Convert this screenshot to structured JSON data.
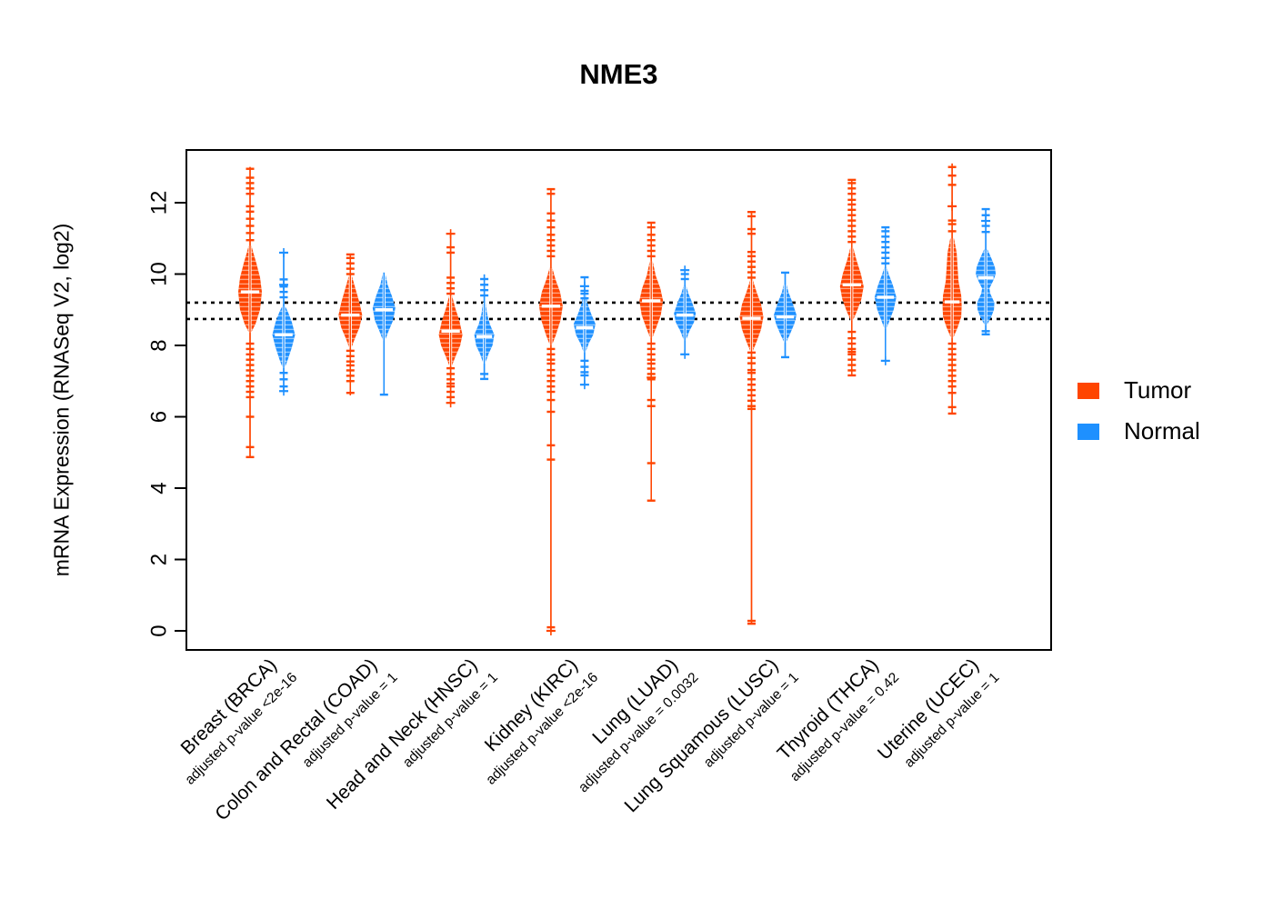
{
  "title": "NME3",
  "legend": {
    "tumor_label": "Tumor",
    "normal_label": "Normal",
    "tumor_color": "#FF4500",
    "normal_color": "#1E90FF"
  },
  "y_axis": {
    "label": "mRNA Expression (RNASeq V2, log2)",
    "ticks": [
      0,
      2,
      4,
      6,
      8,
      10,
      12
    ],
    "range": [
      -0.5,
      13.5
    ]
  },
  "reference_lines": [
    9.2,
    8.74
  ],
  "chart_data": {
    "type": "violin",
    "ylabel": "mRNA Expression (RNASeq V2, log2)",
    "series_names": [
      "Tumor",
      "Normal"
    ],
    "groups": [
      {
        "label": "Breast (BRCA)",
        "sublabel": "adjusted p-value <2e-16",
        "tumor": {
          "median": 9.5,
          "profile": [
            [
              8.35,
              1
            ],
            [
              8.6,
              6
            ],
            [
              9.0,
              11
            ],
            [
              9.5,
              13
            ],
            [
              9.9,
              11
            ],
            [
              10.3,
              7
            ],
            [
              10.6,
              3.5
            ],
            [
              10.8,
              1.5
            ]
          ],
          "stem": [
            4.87,
            13.0
          ],
          "dashes": [
            10.95,
            11.15,
            11.35,
            11.55,
            11.75,
            11.9,
            12.25,
            12.4,
            12.55,
            12.7,
            12.95,
            8.05,
            7.9,
            7.75,
            7.6,
            7.45,
            7.3,
            7.15,
            7.0,
            6.85,
            6.7,
            6.55,
            6.0,
            5.15,
            4.87
          ],
          "plus": []
        },
        "normal": {
          "median": 8.3,
          "profile": [
            [
              7.36,
              1
            ],
            [
              7.6,
              4.5
            ],
            [
              7.95,
              9
            ],
            [
              8.3,
              12.5
            ],
            [
              8.65,
              9
            ],
            [
              8.95,
              4.5
            ],
            [
              9.1,
              1.5
            ]
          ],
          "stem": [
            6.72,
            10.6
          ],
          "dashes": [
            9.35,
            9.5,
            9.65,
            9.85,
            7.23,
            7.05,
            6.85
          ],
          "plus": [
            10.6,
            9.7,
            6.72
          ]
        }
      },
      {
        "label": "Colon and Rectal (COAD)",
        "sublabel": "adjusted p-value = 1",
        "tumor": {
          "median": 8.85,
          "profile": [
            [
              7.92,
              1
            ],
            [
              8.2,
              5
            ],
            [
              8.5,
              10
            ],
            [
              8.85,
              13
            ],
            [
              9.2,
              10
            ],
            [
              9.6,
              5.5
            ],
            [
              9.96,
              1.5
            ]
          ],
          "stem": [
            6.6,
            10.55
          ],
          "dashes": [
            10.0,
            10.15,
            10.3,
            10.45,
            10.55,
            7.85,
            7.7,
            7.55,
            7.44,
            7.3,
            7.15,
            7.0,
            6.67
          ],
          "plus": []
        },
        "normal": {
          "median": 9.0,
          "profile": [
            [
              8.13,
              1
            ],
            [
              8.4,
              5
            ],
            [
              8.7,
              10
            ],
            [
              9.05,
              12.5
            ],
            [
              9.4,
              8.5
            ],
            [
              9.7,
              4
            ],
            [
              10.0,
              1.5
            ]
          ],
          "stem": [
            6.62,
            10.04
          ],
          "dashes": [
            6.62
          ],
          "plus": []
        }
      },
      {
        "label": "Head and Neck (HNSC)",
        "sublabel": "adjusted p-value = 1",
        "tumor": {
          "median": 8.4,
          "profile": [
            [
              7.41,
              1
            ],
            [
              7.7,
              5.5
            ],
            [
              8.0,
              10.5
            ],
            [
              8.3,
              13
            ],
            [
              8.7,
              9.5
            ],
            [
              9.05,
              5
            ],
            [
              9.4,
              1.5
            ]
          ],
          "stem": [
            6.39,
            11.13
          ],
          "dashes": [
            9.45,
            9.6,
            9.75,
            9.9,
            10.6,
            10.75,
            7.36,
            7.2,
            7.05,
            6.93,
            6.85,
            6.7,
            6.55
          ],
          "plus": [
            11.13,
            6.39
          ]
        },
        "normal": {
          "median": 8.25,
          "profile": [
            [
              7.49,
              1
            ],
            [
              7.75,
              4.5
            ],
            [
              8.0,
              9
            ],
            [
              8.3,
              11
            ],
            [
              8.6,
              6
            ],
            [
              8.9,
              3
            ],
            [
              9.2,
              1.5
            ]
          ],
          "stem": [
            7.06,
            9.99
          ],
          "dashes": [
            9.4,
            9.55,
            9.7,
            9.86,
            7.2,
            7.06
          ],
          "plus": []
        }
      },
      {
        "label": "Kidney (KIRC)",
        "sublabel": "adjusted p-value <2e-16",
        "tumor": {
          "median": 9.1,
          "profile": [
            [
              8.0,
              1
            ],
            [
              8.3,
              5.5
            ],
            [
              8.7,
              10.5
            ],
            [
              9.1,
              13
            ],
            [
              9.5,
              10
            ],
            [
              9.85,
              5
            ],
            [
              10.17,
              1.5
            ]
          ],
          "stem": [
            0.0,
            12.38
          ],
          "dashes": [
            10.5,
            10.65,
            10.8,
            10.95,
            11.1,
            11.31,
            11.5,
            11.7,
            12.25,
            12.38,
            7.9,
            7.75,
            7.6,
            7.49,
            7.31,
            7.15,
            7.0,
            6.85,
            6.7,
            6.47,
            6.14,
            5.2,
            4.8,
            0.1
          ],
          "plus": [
            0.0
          ]
        },
        "normal": {
          "median": 8.5,
          "profile": [
            [
              7.8,
              1
            ],
            [
              8.05,
              4.5
            ],
            [
              8.3,
              9.5
            ],
            [
              8.6,
              12
            ],
            [
              8.9,
              7
            ],
            [
              9.2,
              3
            ],
            [
              9.45,
              1.5
            ]
          ],
          "stem": [
            6.9,
            9.91
          ],
          "dashes": [
            9.32,
            9.45,
            9.53,
            9.91,
            7.57,
            7.4,
            7.25,
            7.16
          ],
          "plus": [
            9.66,
            6.9
          ]
        }
      },
      {
        "label": "Lung (LUAD)",
        "sublabel": "adjusted p-value = 0.0032",
        "tumor": {
          "median": 9.25,
          "profile": [
            [
              8.2,
              1
            ],
            [
              8.5,
              5.5
            ],
            [
              8.85,
              10.5
            ],
            [
              9.25,
              13
            ],
            [
              9.6,
              10
            ],
            [
              9.95,
              5
            ],
            [
              10.37,
              1.5
            ]
          ],
          "stem": [
            3.65,
            11.44
          ],
          "dashes": [
            10.5,
            10.65,
            10.8,
            10.95,
            11.1,
            11.31,
            11.44,
            8.05,
            7.9,
            7.75,
            7.6,
            7.49,
            7.35,
            7.2,
            7.05,
            6.47,
            6.3,
            4.7,
            3.65
          ],
          "plus": [
            7.1
          ]
        },
        "normal": {
          "median": 8.85,
          "profile": [
            [
              8.13,
              1
            ],
            [
              8.4,
              5
            ],
            [
              8.65,
              10
            ],
            [
              8.9,
              12
            ],
            [
              9.2,
              8
            ],
            [
              9.45,
              4
            ],
            [
              9.66,
              1.5
            ]
          ],
          "stem": [
            7.75,
            10.11
          ],
          "dashes": [
            9.86,
            10.0
          ],
          "plus": [
            10.11,
            7.75
          ]
        }
      },
      {
        "label": "Lung Squamous (LUSC)",
        "sublabel": "adjusted p-value = 1",
        "tumor": {
          "median": 8.76,
          "profile": [
            [
              7.82,
              1
            ],
            [
              8.1,
              5.5
            ],
            [
              8.45,
              10.5
            ],
            [
              8.8,
              13
            ],
            [
              9.15,
              10.5
            ],
            [
              9.5,
              5.5
            ],
            [
              9.83,
              1.5
            ]
          ],
          "stem": [
            0.2,
            11.74
          ],
          "dashes": [
            9.9,
            10.05,
            10.2,
            10.35,
            10.5,
            10.62,
            11.13,
            11.26,
            11.62,
            11.74,
            7.8,
            7.65,
            7.5,
            7.31,
            7.23,
            7.05,
            6.9,
            6.75,
            6.6,
            6.45,
            6.3,
            6.22,
            0.28,
            0.2
          ],
          "plus": []
        },
        "normal": {
          "median": 8.8,
          "profile": [
            [
              8.08,
              1
            ],
            [
              8.3,
              5
            ],
            [
              8.6,
              10
            ],
            [
              8.85,
              12.5
            ],
            [
              9.2,
              8
            ],
            [
              9.5,
              3.5
            ],
            [
              9.71,
              1.5
            ]
          ],
          "stem": [
            7.67,
            10.04
          ],
          "dashes": [
            10.04,
            7.67
          ],
          "plus": []
        }
      },
      {
        "label": "Thyroid (THCA)",
        "sublabel": "adjusted p-value = 0.42",
        "tumor": {
          "median": 9.7,
          "profile": [
            [
              8.69,
              1
            ],
            [
              8.95,
              5.5
            ],
            [
              9.3,
              10.5
            ],
            [
              9.65,
              13
            ],
            [
              10.0,
              10
            ],
            [
              10.4,
              5
            ],
            [
              10.75,
              1.5
            ]
          ],
          "stem": [
            7.16,
            12.64
          ],
          "dashes": [
            10.9,
            11.05,
            11.2,
            11.35,
            11.5,
            11.65,
            11.8,
            11.95,
            12.08,
            12.25,
            12.4,
            12.55,
            12.64,
            8.38,
            8.2,
            8.05,
            7.9,
            7.82,
            7.75,
            7.6,
            7.45,
            7.3,
            7.16
          ],
          "plus": []
        },
        "normal": {
          "median": 9.35,
          "profile": [
            [
              8.46,
              1
            ],
            [
              8.7,
              4.5
            ],
            [
              9.0,
              9
            ],
            [
              9.35,
              12
            ],
            [
              9.7,
              8
            ],
            [
              10.0,
              3.5
            ],
            [
              10.17,
              1.5
            ]
          ],
          "stem": [
            7.57,
            11.31
          ],
          "dashes": [
            10.3,
            10.45,
            10.6,
            10.75,
            10.9,
            11.05,
            11.2,
            11.31
          ],
          "plus": [
            7.57
          ]
        }
      },
      {
        "label": "Uterine (UCEC)",
        "sublabel": "adjusted p-value = 1",
        "tumor": {
          "median": 9.22,
          "profile": [
            [
              8.2,
              1
            ],
            [
              8.5,
              6
            ],
            [
              8.8,
              10
            ],
            [
              9.1,
              10.5
            ],
            [
              9.4,
              10
            ],
            [
              9.8,
              7
            ],
            [
              10.2,
              6
            ],
            [
              10.6,
              5
            ],
            [
              11.0,
              2
            ]
          ],
          "stem": [
            6.09,
            13.1
          ],
          "dashes": [
            11.2,
            11.4,
            11.5,
            12.5,
            12.76,
            13.0,
            8.05,
            7.9,
            7.75,
            7.6,
            7.45,
            7.3,
            7.15,
            7.0,
            6.85,
            6.67,
            6.27,
            6.09
          ],
          "plus": [
            11.9
          ]
        },
        "normal": {
          "median": 9.9,
          "profile": [
            [
              8.56,
              1
            ],
            [
              8.8,
              6
            ],
            [
              9.0,
              9
            ],
            [
              9.2,
              9.5
            ],
            [
              9.45,
              5
            ],
            [
              9.6,
              4
            ],
            [
              9.8,
              8
            ],
            [
              10.0,
              11
            ],
            [
              10.2,
              10
            ],
            [
              10.45,
              6
            ],
            [
              10.68,
              2
            ]
          ],
          "stem": [
            8.31,
            11.82
          ],
          "dashes": [
            11.18,
            11.35,
            11.65,
            11.82,
            8.4,
            8.31
          ],
          "plus": [
            11.49
          ]
        }
      }
    ]
  }
}
